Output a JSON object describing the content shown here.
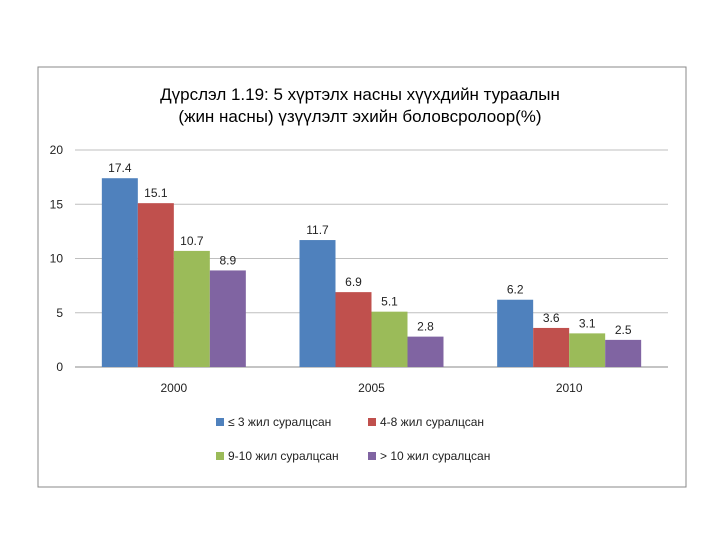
{
  "chart_data": {
    "type": "bar",
    "title_lines": [
      "Дүрслэл 1.19: 5 хүртэлх насны хүүхдийн тураалын",
      "(жин насны) үзүүлэлт эхийн боловсролоор(%)"
    ],
    "categories": [
      "2000",
      "2005",
      "2010"
    ],
    "ylim": [
      0,
      20
    ],
    "yticks": [
      "0",
      "5",
      "10",
      "15",
      "20"
    ],
    "series": [
      {
        "name": "≤ 3 жил суралцсан",
        "color": "#4F81BD",
        "values": [
          17.4,
          11.7,
          6.2
        ]
      },
      {
        "name": "4-8 жил суралцсан",
        "color": "#C0504D",
        "values": [
          15.1,
          6.9,
          3.6
        ]
      },
      {
        "name": "9-10 жил суралцсан",
        "color": "#9BBB59",
        "values": [
          10.7,
          5.1,
          3.1
        ]
      },
      {
        "name": "> 10 жил суралцсан",
        "color": "#8064A2",
        "values": [
          8.9,
          2.8,
          2.5
        ]
      }
    ],
    "data_labels": [
      [
        "17.4",
        "11.7",
        "6.2"
      ],
      [
        "15.1",
        "6.9",
        "3.6"
      ],
      [
        "10.7",
        "5.1",
        "3.1"
      ],
      [
        "8.9",
        "2.8",
        "2.5"
      ]
    ],
    "grid": true,
    "legend_position": "bottom"
  }
}
